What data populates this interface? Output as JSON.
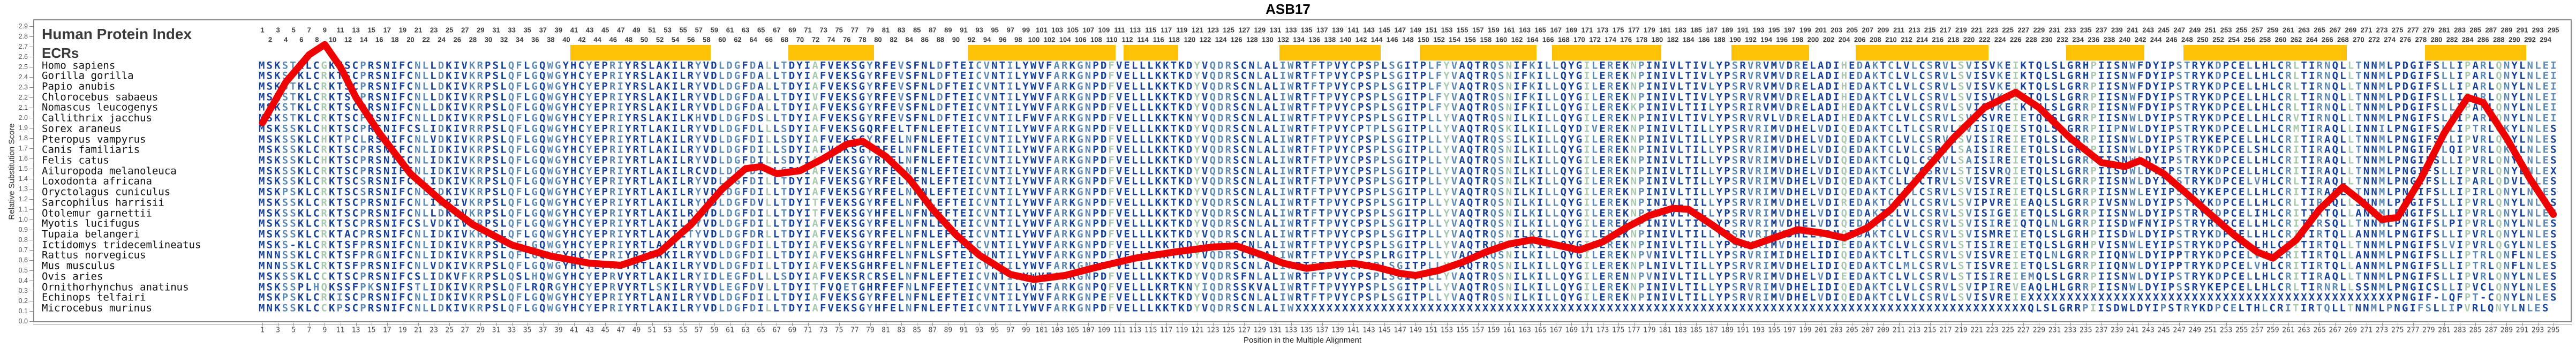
{
  "title": "ASB17",
  "panel_heading": "Human Protein Index",
  "track_label": "ECRs",
  "y_axis": {
    "label": "Relative Substitution Score",
    "min": 0.0,
    "max": 2.9,
    "step": 0.1
  },
  "x_axis": {
    "label": "Position in the Multiple Alignment",
    "top_ruler_odd": {
      "start": 1,
      "end": 295,
      "step": 2
    },
    "top_ruler_even": {
      "start": 2,
      "end": 294,
      "step": 2
    },
    "bottom_ruler": {
      "start": 1,
      "end": 295,
      "step": 2
    }
  },
  "colors": {
    "residue_primary": "#16419A",
    "residue_secondary": "#5E8AB4",
    "residue_variable": "#A9C9AE",
    "curve": "#EE0202",
    "ecr_bar": "#FFC104",
    "axis": "#8A8A8A",
    "ruler_text": "#3D3D3D",
    "heading_text": "#3A3A3A"
  },
  "ecr_regions": [
    {
      "start": 41,
      "end": 58
    },
    {
      "start": 69,
      "end": 79
    },
    {
      "start": 92,
      "end": 110
    },
    {
      "start": 112,
      "end": 118
    },
    {
      "start": 132,
      "end": 144
    },
    {
      "start": 150,
      "end": 164
    },
    {
      "start": 167,
      "end": 180
    },
    {
      "start": 190,
      "end": 199
    },
    {
      "start": 206,
      "end": 222
    },
    {
      "start": 233,
      "end": 242
    },
    {
      "start": 248,
      "end": 268
    },
    {
      "start": 279,
      "end": 291
    }
  ],
  "green_columns": [
    9,
    66,
    72,
    110,
    121,
    153,
    161,
    171,
    177,
    204,
    219,
    226,
    236,
    262,
    269,
    284,
    288
  ],
  "chart_data": {
    "type": "line",
    "title": "ASB17",
    "xlabel": "Position in the Multiple Alignment",
    "ylabel": "Relative Substitution Score",
    "xlim": [
      1,
      295
    ],
    "ylim": [
      0.0,
      2.9
    ],
    "legend_position": "none",
    "grid": false,
    "series": [
      {
        "name": "conservation-score",
        "points": [
          [
            1,
            1.95
          ],
          [
            4,
            2.35
          ],
          [
            7,
            2.62
          ],
          [
            9,
            2.72
          ],
          [
            11,
            2.5
          ],
          [
            13,
            2.2
          ],
          [
            16,
            1.85
          ],
          [
            20,
            1.45
          ],
          [
            24,
            1.18
          ],
          [
            28,
            0.95
          ],
          [
            33,
            0.75
          ],
          [
            38,
            0.64
          ],
          [
            43,
            0.57
          ],
          [
            47,
            0.55
          ],
          [
            52,
            0.68
          ],
          [
            56,
            0.95
          ],
          [
            60,
            1.3
          ],
          [
            63,
            1.5
          ],
          [
            65,
            1.52
          ],
          [
            67,
            1.45
          ],
          [
            70,
            1.48
          ],
          [
            73,
            1.6
          ],
          [
            76,
            1.74
          ],
          [
            78,
            1.77
          ],
          [
            81,
            1.62
          ],
          [
            84,
            1.4
          ],
          [
            87,
            1.1
          ],
          [
            90,
            0.85
          ],
          [
            93,
            0.65
          ],
          [
            97,
            0.46
          ],
          [
            100,
            0.41
          ],
          [
            104,
            0.45
          ],
          [
            108,
            0.53
          ],
          [
            113,
            0.62
          ],
          [
            118,
            0.68
          ],
          [
            123,
            0.73
          ],
          [
            126,
            0.74
          ],
          [
            129,
            0.66
          ],
          [
            132,
            0.57
          ],
          [
            135,
            0.52
          ],
          [
            138,
            0.55
          ],
          [
            141,
            0.57
          ],
          [
            144,
            0.53
          ],
          [
            147,
            0.47
          ],
          [
            149,
            0.45
          ],
          [
            152,
            0.5
          ],
          [
            155,
            0.58
          ],
          [
            158,
            0.68
          ],
          [
            161,
            0.76
          ],
          [
            164,
            0.8
          ],
          [
            167,
            0.75
          ],
          [
            170,
            0.7
          ],
          [
            173,
            0.78
          ],
          [
            176,
            0.92
          ],
          [
            179,
            1.04
          ],
          [
            182,
            1.11
          ],
          [
            184,
            1.1
          ],
          [
            187,
            0.95
          ],
          [
            190,
            0.79
          ],
          [
            192,
            0.74
          ],
          [
            195,
            0.82
          ],
          [
            198,
            0.9
          ],
          [
            201,
            0.87
          ],
          [
            204,
            0.82
          ],
          [
            207,
            0.92
          ],
          [
            210,
            1.1
          ],
          [
            214,
            1.45
          ],
          [
            218,
            1.8
          ],
          [
            222,
            2.1
          ],
          [
            226,
            2.25
          ],
          [
            229,
            2.1
          ],
          [
            233,
            1.8
          ],
          [
            237,
            1.56
          ],
          [
            240,
            1.52
          ],
          [
            242,
            1.58
          ],
          [
            245,
            1.45
          ],
          [
            248,
            1.25
          ],
          [
            251,
            1.05
          ],
          [
            254,
            0.85
          ],
          [
            257,
            0.68
          ],
          [
            259,
            0.62
          ],
          [
            262,
            0.8
          ],
          [
            265,
            1.1
          ],
          [
            268,
            1.32
          ],
          [
            270,
            1.2
          ],
          [
            273,
            1.0
          ],
          [
            275,
            1.02
          ],
          [
            278,
            1.4
          ],
          [
            281,
            1.85
          ],
          [
            284,
            2.2
          ],
          [
            286,
            2.15
          ],
          [
            289,
            1.8
          ],
          [
            292,
            1.4
          ],
          [
            295,
            1.05
          ]
        ]
      }
    ]
  },
  "alignment": {
    "length": 295,
    "species": [
      {
        "name": "Homo sapiens",
        "seq": "MSKSTKLCGKTSCPRSNIFCNLLDKIVKRPSLQFLGQWGYHCYEPRIYRSLAKILRYVDLDGFDALLTDYIAFVEKSGYRFEVSFNLDFTEICVNTILYWVFARKGNPDFVELLLKKTKDYVQDRSCNLALIWRTFTPVYCPSPLSGITPLFYVAQTRQSNIFKILLQYGILEREKNPINIVLTIVLYPSRVRVMVDRELADIHEDAKTCLVLCSRVLSVISVKEIKTQLSLGRHPIISNWFDYIPSTRYKDPCELLHLCRLTIRNQLLTNNMLPDGIFSLLIPARLQNYLNLEI"
      },
      {
        "name": "Gorilla gorilla",
        "seq": "MSKSTKLCRKTSCPRSNIFCNLLDKIVKRPSLQFLGQWGYHCYEPRIYRSLAKILRYVDLDGFDALLTDYIAFVEKSGYRFEVSFNLDFTEICVNTILYWVFARKGNPDFVELLLKKTKDYVQDRSCNLALIWRTFTPVYCPSPLSGITPLFYVAQTRQSNIFKILLQYGILEREKNPINIVLTIVLYPSRVRVMVDRELADIHEDAKTCLVLCSRVLSVISVKEIKTQLSLGRHPIISNWFDYIPSTRYKDPCELLHLCRLTIRNQLLTNNMLPDGIFSLLIPARLQNYLNLEI"
      },
      {
        "name": "Papio anubis",
        "seq": "MSKSTKLCRKTSCPRSNIFCNLLDKIVKRPSLQFLGQWGYHCYEPRIYRSLAKILRYVDLDGFDALLTDYIAFVEKSGYRFEVSFNLDFTEICVNTILYWVFARKGNPDFVELLLKKTKDYVQDRSCNLALIWRTFTPVYCPSPLSGITPLFYVAQTRQSNIFKILLQYGILEREKNPINIVLTIVLYPSRVRVMVDRELADIHEDAKTCLVLCSRVLSVISVKEIKTQLSLGRRPIISNWFDYIPSTRYKDPCELLHLCRLTIRNQLLTNNMLPDGIFSLLIPARLQNYLNLEI"
      },
      {
        "name": "Chlorocebus sabaeus",
        "seq": "MSKSTKLCRKTSCPRSNIFCNLLDKIVKRPSLQFLGQWGYHCYEPRIYRSLAKILRYVDLDGFDALLTDYIVFVEKSGYRFEVSFNLDFTEICVNTILYWVFARKGNPDFVELLLKKTKDYVQDRSCNLALIWRTFTPVYCPSPLSGITPLFYVAQTRQSNIFKILLQYGILEREKNPINIVLTIVLYPSRVRVMVDRELADIHEDAKTCLVLCSRVLSVISVKEIKTQLSLGRRPIISNWFDYIPSTRYKDPCELLHLCRLTIRNQLLTNNMLPDGIFSLLIPARLQNYLNLEI"
      },
      {
        "name": "Nomascus leucogenys",
        "seq": "MSKSTKLCRKTSCPRSNIFCNLLDKIVKRPSLQFLGQWGYHCYEPRIYRSLAKILRYVDLDGFDALLTDYIAFVEKSGYRFEVSFNLDFTEICVNTILYWVFARKGNPDFVELLLKKTKDYVQDRSCNLALIWRTFTPVYCPSPLSGITPLFYVAQTRQSNIFKILLQYGILEREKKPINIVLTIILYPSRIRVMVDRELADIHEDAKTCLVLCSRVLSVISVKEIKTHLSLGRRPIISNWFDYIPSTRYKDPCELLHLCRLTIRNQLLTNNMLPDGIFSLLIPARLQNYLNLEI"
      },
      {
        "name": "Callithrix jacchus",
        "seq": "MSKSTKLCRKTSCPRSNIFCNLLDKIVKRPSLQFLGQWGYHCYEPRIYRSLAKILKHVDLDGFDSLLTDYIAFVEKSGYRFEVSFNLDFTEICVNTILFWVFARKGNPDFVELLLKKTKNYVQDRSCNLALIWRTFTPVYCPSPLSGITPLLYVAQTRQSNILKILLQYGILEREKNPINIVLTIVLYPSRVRVLVDRELADIHEDAKTCLVLCSRVLSVISVREIETQLSLGRRPIISNWLDYIPSTRYKDPCELLHLCRVTIRNQLLTNNMLPNGIFSLLIPARLQNYLNLEI"
      },
      {
        "name": "Sorex araneus",
        "seq": "MSKSSKLCHKTSCPRSNIFCSLIDKIVRRPSLQFLGQWGYHCYEPRIYRTLAKILRYVDLDGFDLLLSDYIAFVEKSGQRFELTFNLEFTEICVNTILYWVFARKGNPDFVELLLKKTKDYVQDRSCNLALIWRTFTPVYCPTPLSGITPLLYVAQTRQSKILKILLQYDIVEREKNPINIVLTILLYPSRVRIMVDHELVDIQEDAKTCLTLCSRVLSVISIQEISTQLSLGRRPIIPNWLDYIPSTRYKDPCELLHLCRMTIRAQLLINNILPNGIFSLLIPTRLQKYLNLES"
      },
      {
        "name": "Pteropus vampyrus",
        "seq": "MSKSSKLCHKTPCLRSNIFCNLVDKIVKRPSLQFLGQWGYHCYEPRIYRTLAKILRYVDLDGFDILLSDYIAFVEKSGYRFELNFNLEFTEICVNTILYWVFARKGNPDFVELLLKKTKDYVQDRSCNLALIWRTFTPVYCPSPLSGITPLLYVAQTRQSSILKILLQYGILEREKNPINIVLTILLYPSRVRIMVDHELVDIQEDAKTCLVLCSRVLSVISIREIETQLSLGRRPIISNWLDYIPSTRYKEPCELLHLCRITIRAQLLTNNMLPNGIFSLLIPVRLQNYLNLES"
      },
      {
        "name": "Canis familiaris",
        "seq": "MSKSSKLCRKTSCPRSNIFCNLIDKIVKRPSLQFLGQWGYHCYEPRIYRTLAKILRYVDLDGFDILLSDYIAFVEKSGYRFELNFNLEFTEICVNTILYWVFARKGNPDFVELLLKKTKDYVQDRSCNLALIWRTFTPVYCPSPLSGITPLLYVAQTRQSNILKILLQYGILEREKNPINIVLTILLYPSRVRIMVDHELVDIQEDAKTCLVLCSRVLSAISIREIETQLSLGRRPIISNWLDYIPSTRYKDPCELSHLCRITIRAQLLTNNMLPNGIFSLQIPVRLQKYLNLES"
      },
      {
        "name": "Felis catus",
        "seq": "MSKSSKLCHKTSCPRSNIFCNLIDKIVKRPSLQFLGQWGYHCYEPRIYRTLAKILRYVDLDGFDILLSDYIAFVEKSGYRFELNFNLEFTEICVNTILYWVFARKGNPDFVELLLKKTKDYVQDRSCNLALIWRTFTPVYCPSPLSGITPLLYVAQTRQSNILKILLQYGILEREKNPINIVLTILLYPSRVRIMVDHELVDIQEDAKTCLQLCSRVLSAISIREIETQLSLGRRPIISNWLDYIPSTRYKDPCELLHLCRITIRAQLLTNNMLPNGIFSLLIPVRLQNYLNLES"
      },
      {
        "name": "Ailuropoda melanoleuca",
        "seq": "MSKSSKLCRKTSCPRSNIFCNLIDKIVKRPSLQFLGQWGYHCYEPRIYRTLAKILRCVDLDGFDILLSDYIAFVEKSGYRFELNFNLEFTEICVNTILYWVFARKGNPDFVELLLKKTKDYVQDRSCNLALIWRTFTPVYCPSPLSGITPLLYVAQTRQSNILKILLQYGILEREKNPINIVLTILLYPSRVRIMVDHELVDIQEDAKTCLVLCSRVLSTISVRQIETQLSLGRRPIISDWLDYIPSTRYKDPCELLHLCRITIRAQLLTNNMLPNGIFSLLIPVRLQNYLNLEX"
      },
      {
        "name": "Loxodonta africana",
        "seq": "MSKSSKLCRKTSCSRSNIFCNLIDKIVKRPSLQFLGQWGYHCYEPRIYRTLAKILRYVDLEGFDILLTDYIAFVEKSGYRFELNFNLEFTEICVNTILYWVFARKGNPDFVELLLKKTKDYVQDRSCNLALIWRTFTPVYCPSPLSGITPLLYVAQTRQSNILKILLQYGILEREKNPINIVLTILLYPSRVRIMVDHELVDIQEDAKTCLLLCTRVLSVISVREIETQLSLGRRPIISNWLDYIPSTRYKDPCELVHLCRLTIRAQLLTNNMLPNGIFSLLIPARLQDVLNLES"
      },
      {
        "name": "Oryctolagus cuniculus",
        "seq": "MSKPSKLCRKTSCSRSNIFCNLIDKIVKRPSLQFLGQWGYHCYEPRIYRTLAKILRYVDLDGFDILLTDYIAFVEKSGYRFELNFNLEFTEICVNTILYWVFARKGNPDFVELLLKKTKDYVQDRSCNLALIWRTFTPVYCPSPLSGITPLLYVAQTRQSNILKILLQYGILEREKNPINIVLTILLYPSRVRIMVDHELVDIQEDAKTCLVLCSRVLSVISIREIETQLSLGRRPIISNWLEYIPSTRYKEPCELLHLCRITIRAQLLTNNMLPNGIFSLLIPIRLQNYLNLES"
      },
      {
        "name": "Sarcophilus harrisii",
        "seq": "MSKSSKLCRKTSCPRSNIFCNLIDRIVKRPSLQFLGQWGYHCYEPRIYRTLAKILRYVDLDGFDVLLTDYITFVEKSGYRFELNFNLEFTEICVNTILYWVFARKGNPDFVELLLKKTKDYVQDRSCNLALIWRTFTPVYCPSPLSGITPLLYVAQTRQSNILKILLQYGILEREKNPINIVLTILLYPSRVRIMVDHELVDIREDAKTCLVLCSRVLSVIPVREIEAQLSLGRRPIVSNWLDYIPSTRYKDPCELLHLCRLTIRAQLLSNNMLPNGIFSLLIPVRLQNYLNLES"
      },
      {
        "name": "Otolemur garnettii",
        "seq": "MSKSSKLCRKTSCPRSNIFCNLLDKIVKRPSLQFLGQWGYHCYEPRIYRTLAKILRYVDLDGFDILLTDYITFVEKSGYHFELNFNLEFTEICVNTILYWVFARKGNPDFVELLLKKTKDYVQDRSCNLALIWRTFTPVYCPSPLSGITPLLYVAQTRQSNILKILLQYGILEREKNPINIVLTILLYPSRVRIMVDHELVDIQEDAKTCLVLCSRVLSVISIGEIETQLSLGRRPIISNWLDYIPSTRYKDPCELIHLCRITIRTQLLANNMLPNGIFSLLIPVRLQNYLNLES"
      },
      {
        "name": "Myotis lucifugus",
        "seq": "MSKSSKLCRKTSCPRSNIFCSLVDKIVKRPSLQFLGQWGYHCYEPRIYRTLAKILRYVDLDGFDILLTDYIAFVEKSGYRFELNFNLEFTEICVNTILYWVFARKGNPDFVELLLKKTKDYVQDRSCNLALIWRTFTPVYCPSPLSGITPLLYVAQTRQSNILKILLQYGILEREKNPINIVLTILLYPSRVRIMVDHELVDIQEDAKTCLVLCSRVLSVISIREIQTQLNLGRRPIISDWFNYIPSTRYRDPCELLHLCRITIRSQLLTNNMLPNGIFSLPIPVRLQNYLNLES"
      },
      {
        "name": "Tupaia belangeri",
        "seq": "MSKSSKLCRKTACPRSNIFCNLIDKIVKRPSLQFLGQWGYHCYEPRIYRTLAKILTYVDLDGFDRLLTDYIAFVEKSGYRFELNFNLEFTEICVNTILYWVFARKGNPDFVELLLKKTKDYVQDRSCNLALIWRTFTPVYCPSPLSGITPLLYVAQTRQSNILKILLQYGILEREKNPINIVLTILLYPSRVRIMVDHELVDMQEDAKTCLVLCSRVLSVISMREIETQLSLGRHPIISDWLDYIPSTRYKDPCELLHLCRITIRTQLLANNMLPNGIFSLLIPVRLQNYLNLES"
      },
      {
        "name": "Ictidomys tridecemlineatus",
        "seq": "MSKS-KLCRKTSFPRSNIFCNLIDKIVKRPSLQFLGQWGYHCYEPRIYRTLAKILRYVDLDGFDILLTDYIAFVEKSGYRFELNFNLEFTEICVNTILYWVFARKGNPDFVELLLKKTKDYVQDRSCNLALIWRTFTPVYCPSPLSGITPLLYVAQTRQSNILKILLQYGILEREKNPINIVLTILLYPSRVRIMVDHELIDIEEDAKTCLVLCSRVLSTISIREIETQLSLGRHPVISNWLEYIPSTRYKDPCELLHLCRITIRTQLLTNNMLPNGIFSLVIPVRLQGYLNLES"
      },
      {
        "name": "Rattus norvegicus",
        "seq": "MNNSSKLCRKTSFPRGNIFCNLIDKIVKRPSLQFLGQWGYHCYEPRIYRTLAKILRYVDLDGFDILLTDYIAFVEKSGHRFELNFNLSFTEICVNTILYWVFARKGNPDFVELLLKKTKDYVQDRSCNLALIWRTFTPVYCPSPLRGITPLLYVAQTRQSNILKILLQYGILEREKNPVNIVLTILLYPSRVRIMIDHELIDIQEDAKTCLTLCSRVLSVISVREIETQLNLGRRPIIQNWLDYIPPTRYKDPCELVHLCRITIRTQLLANNMLPNGIFSLLIPTRLQNFLNLES"
      },
      {
        "name": "Mus musculus",
        "seq": "MNNSSKLCRKTSFPRSNIFCNLVDKIVKRPSLQFLGQWGYHCYEPRIYRTLAKILRYVDLDGFDILLTDYIAFVEKSGHRFELNFNLEFTEICVNTILYWVFARKGNPDFVELLLKKTKDYVQDRSCNLALIWRTFTPVYCPSPLSGITPLLYVAQTRQSNILKILLQYGILEREKNPLNIVLTILLYPSRVRIMVDHELIDIQEDAKTCLMLCSRVLSTISVREIETQLSLGRRPIIQNWLDYIPPTRYKDPCELVHLCRITIRTQLLANNMLPNGIFSLLIPTRLQNFLNLES"
      },
      {
        "name": "Ovis aries",
        "seq": "MSKSSKLCCKTSCPRSNIFCSLIDKVFKRPSLQSLHQWGYHCYEPRVYRTLAKILRYIDLEGFDLLLSDYIAFVEKSRCRSELNFNLEFTEICVNTILYWVFARKGNPDFVELLLKKTKDYVQDRSFNLALIWRTFTPVYCPSPLSGITPLLYVAQTRQSNILKILLQYGILERENNPVNIVLTILLYPSRVRIMVDHELVDIEEDAKTCLVLCSRVLSTISIREIEMQLSLGRRPIISNWLDYIPSTRYKDPCELLHLCRITIRAQLLTNNMLPNGIFSLLIPVRLQNYLNLES"
      },
      {
        "name": "Ornithorhynchus anatinus",
        "seq": "MSKSSPLHQKSSFPKSNIFSTLIDKIVKRPSLQFLRQRGYHCYEPRVYRTLSKILRYVDLEGFDVLLTDYITFVQETGHRFEFNLNFEFTEICVNTILYWIFARKGNPQFVELLLKRTKNYIQDRSSKVALIWRTFTPVYYPSPLSGITPLLYVAQTRQSNILKILLQYGILEREKNPINIVLTILLYPSRVRIMVDHELIDIQEDAKTCLVLCSRVLSVIPIREVEAQLHLGRRPIISNWLDYIPSSRYKEPCELLHLCRLTIRNRLLSSNMLPNGICSLLIPVCLQNYLNLES"
      },
      {
        "name": "Echinops telfairi",
        "seq": "MSKPSKLCRKISCPRSNIFCNLIDKIVKRPSLQFLGQWGYHCYEPRIYRTLANILRYVDLDGFDILLTDYIAFVEKSGYRFELNFNLEFTEICVNTILYWVFARKGNPEFVELLLKKTKDYVQDRSCNLALIWRTFTPVYCPSPLSGITPLLYVAQTRQSNILKILLQYGILEREKNPINIVLTILLYPSRVRIMVDHELVDIQEDAKTCLVLCSRVLSVISVREIEXXXXXXXXXXXXXXXXXXXXXXXXXXXXXXXXXXXXXXXXXXXXXXXPNGIF-LQFPT-CQNYLNLES"
      },
      {
        "name": "Microcebus murinus",
        "seq": "MNKSSKLCCKPSCPRSNIFCNLLDKIVKRPSLQFLGQWGYHCYEPRIYRTLAKILRYVDLDGFDILLTDYIAFVEKSGYHFELNFNLEFTEICVNTILYWVFARKGNPDFVELLLKKTKDYVQDRSCNLALIWXXXXXXXXXXXXXXXXXXXXXXXXXXXXXXXXXXXXXXXXXXXXXXXXXXXXXXXXXXXXXXXXXXXXXXXXXXXXXXXXXXXXXXXXXXXXXXQLSLGRRPIISDWLDYIPSTRYKDPCELTHLCRITIRTQLLTNNMLPNGIFSLLIPVRLQNYLNLES"
      }
    ]
  }
}
